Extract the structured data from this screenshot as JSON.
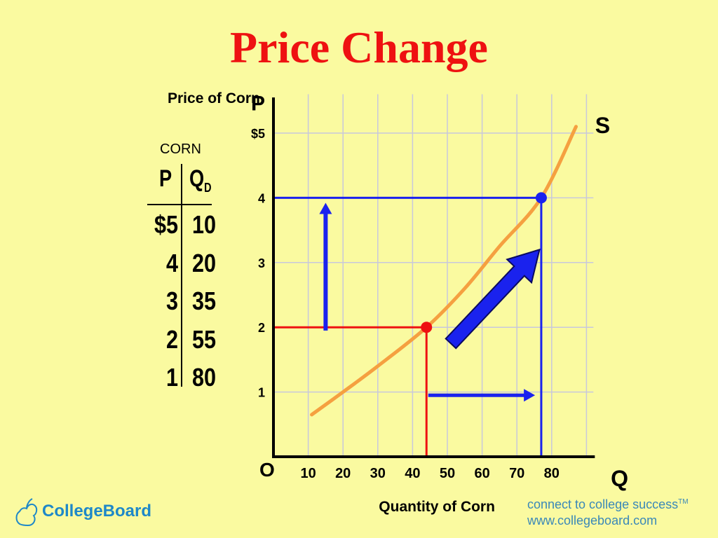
{
  "slide": {
    "title": "Price Change"
  },
  "schedule": {
    "caption": "CORN",
    "header_p": "P",
    "header_q": "Q",
    "header_q_sub": "D",
    "rows": [
      {
        "p": "$5",
        "q": "10"
      },
      {
        "p": "4",
        "q": "20"
      },
      {
        "p": "3",
        "q": "35"
      },
      {
        "p": "2",
        "q": "55"
      },
      {
        "p": "1",
        "q": "80"
      }
    ]
  },
  "chart_data": {
    "type": "line",
    "title": "",
    "ylabel": "Price of Corn",
    "xlabel": "Quantity of Corn",
    "y_axis_letter": "P",
    "x_axis_letter": "Q",
    "origin_label": "O",
    "xlim": [
      0,
      90
    ],
    "ylim": [
      0,
      5
    ],
    "x_ticks": [
      10,
      20,
      30,
      40,
      50,
      60,
      70,
      80
    ],
    "y_ticks": [
      {
        "value": 1,
        "label": "1"
      },
      {
        "value": 2,
        "label": "2"
      },
      {
        "value": 3,
        "label": "3"
      },
      {
        "value": 4,
        "label": "4"
      },
      {
        "value": 5,
        "label": "$5"
      }
    ],
    "grid": true,
    "series": [
      {
        "name": "S",
        "color": "#f5a040",
        "points": [
          [
            11,
            0.65
          ],
          [
            20,
            1.0
          ],
          [
            30,
            1.4
          ],
          [
            44,
            2.0
          ],
          [
            55,
            2.6
          ],
          [
            65,
            3.25
          ],
          [
            77,
            4.0
          ],
          [
            87,
            5.1
          ]
        ]
      }
    ],
    "highlighted_points": [
      {
        "x": 44,
        "y": 2,
        "color": "#ee1111"
      },
      {
        "x": 77,
        "y": 4,
        "color": "#1a22ee"
      }
    ],
    "guide_colors": {
      "old": "#ee1111",
      "new": "#1a22ee",
      "arrow": "#1a22ee",
      "axes": "#000000",
      "grid": "#c8c8dc"
    }
  },
  "footer": {
    "logo_text": "CollegeBoard",
    "tagline_line1": "connect to college success",
    "tagline_tm": "TM",
    "tagline_line2": "www.collegeboard.com"
  }
}
